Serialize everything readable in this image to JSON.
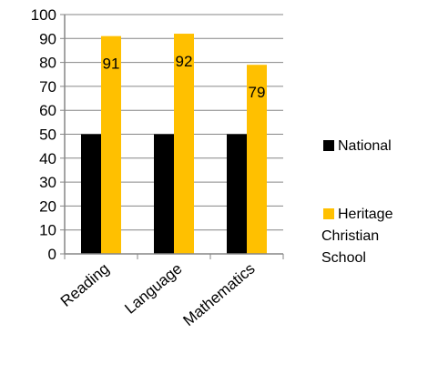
{
  "chart_data": {
    "type": "bar",
    "categories": [
      "Reading",
      "Language",
      "Mathematics"
    ],
    "series": [
      {
        "name": "National",
        "values": [
          50,
          50,
          50
        ],
        "color": "#000000",
        "data_labels": false
      },
      {
        "name": "Heritage Christian School",
        "name_lines": [
          "Heritage",
          "Christian",
          "School"
        ],
        "values": [
          91,
          92,
          79
        ],
        "color": "#FFC000",
        "data_labels": true
      }
    ],
    "ylim": [
      0,
      100
    ],
    "ytick_step": 10,
    "grid": true,
    "legend": "right",
    "title": "",
    "xlabel": "",
    "ylabel": ""
  }
}
